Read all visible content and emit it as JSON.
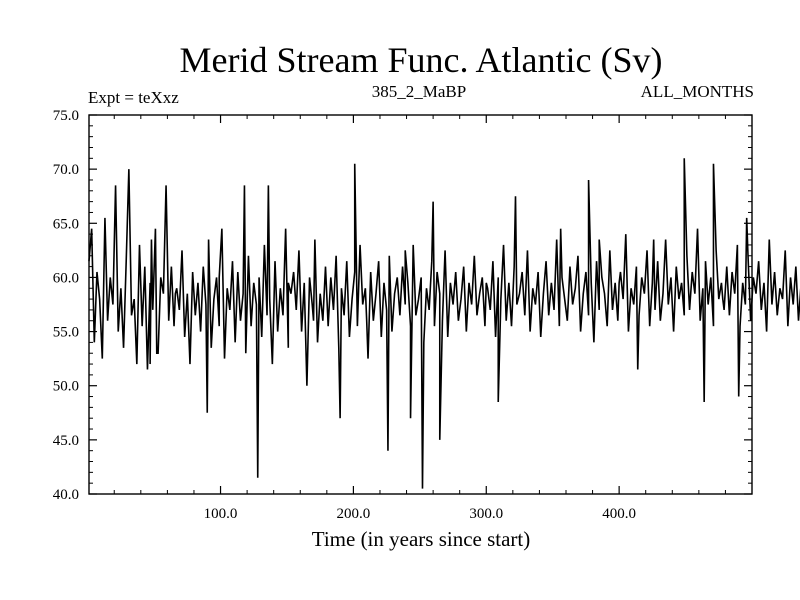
{
  "chart_data": {
    "type": "line",
    "title": "Merid Stream Func. Atlantic (Sv)",
    "subtitle_left": "Expt = teXxz",
    "subtitle_center": "385_2_MaBP",
    "subtitle_right": "ALL_MONTHS",
    "xlabel": "Time (in years since start)",
    "ylabel": "",
    "xlim": [
      1,
      500
    ],
    "ylim": [
      40,
      75
    ],
    "x_ticks": [
      {
        "value": 100,
        "label": "100.0"
      },
      {
        "value": 200,
        "label": "200.0"
      },
      {
        "value": 300,
        "label": "300.0"
      },
      {
        "value": 400,
        "label": "400.0"
      }
    ],
    "y_ticks": [
      {
        "value": 40,
        "label": "40.0"
      },
      {
        "value": 45,
        "label": "45.0"
      },
      {
        "value": 50,
        "label": "50.0"
      },
      {
        "value": 55,
        "label": "55.0"
      },
      {
        "value": 60,
        "label": "60.0"
      },
      {
        "value": 65,
        "label": "65.0"
      },
      {
        "value": 70,
        "label": "70.0"
      },
      {
        "value": 75,
        "label": "75.0"
      }
    ],
    "series": [
      {
        "name": "Atlantic MOC",
        "color": "#000000",
        "x_start": 1,
        "x_step": 2,
        "values": [
          61.5,
          64.5,
          54.0,
          60.5,
          58.0,
          52.5,
          65.5,
          56.0,
          60.0,
          57.5,
          68.5,
          55.0,
          59.0,
          53.5,
          61.5,
          70.0,
          56.5,
          58.0,
          52.0,
          63.0,
          55.5,
          61.0,
          51.5,
          59.5,
          57.0,
          64.5,
          53.0,
          60.0,
          58.5,
          68.5,
          56.0,
          61.0,
          55.5,
          59.0,
          57.0,
          62.5,
          54.5,
          58.5,
          52.0,
          60.5,
          56.5,
          59.5,
          55.0,
          61.0,
          57.5,
          63.5,
          53.5,
          58.0,
          60.0,
          55.5,
          64.5,
          52.5,
          59.0,
          57.0,
          61.5,
          54.0,
          60.5,
          56.0,
          58.5,
          53.0,
          62.0,
          55.5,
          59.5,
          57.5,
          60.0,
          54.5,
          63.0,
          56.5,
          58.0,
          52.0,
          61.5,
          55.0,
          59.0,
          56.5,
          64.5,
          53.5,
          58.5,
          60.5,
          57.0,
          62.5,
          55.0,
          59.5,
          50.0,
          60.0,
          57.5,
          63.5,
          54.0,
          58.5,
          56.0,
          61.0,
          55.5,
          60.0,
          57.0,
          62.0,
          53.5,
          59.0,
          56.5,
          61.5,
          54.5,
          58.0,
          60.5,
          55.5,
          63.0,
          57.5,
          59.0,
          52.5,
          60.5,
          56.0,
          58.5,
          61.5,
          54.5,
          59.5,
          57.0,
          62.0,
          55.0,
          58.5,
          60.0,
          56.5,
          61.0,
          57.5,
          59.5,
          55.5,
          63.0,
          56.5,
          58.0,
          60.0,
          54.0,
          59.0,
          57.0,
          61.5,
          55.5,
          60.5,
          58.5,
          56.0,
          62.5,
          54.5,
          59.5,
          57.5,
          60.5,
          56.0,
          58.0,
          61.0,
          55.0,
          59.5,
          57.5,
          62.0,
          56.5,
          58.5,
          60.0,
          55.5,
          59.0,
          57.0,
          61.5,
          54.5,
          60.0,
          58.0,
          63.0,
          56.0,
          59.5,
          55.5,
          61.0,
          57.5,
          58.5,
          60.5,
          56.5,
          62.5,
          55.0,
          59.0,
          57.5,
          60.5,
          54.5,
          58.5,
          61.5,
          56.5,
          59.5,
          57.0,
          63.5,
          55.5,
          60.0,
          58.0,
          56.0,
          61.0,
          57.5,
          59.0,
          62.0,
          55.0,
          58.5,
          60.5,
          56.5,
          59.5,
          54.0,
          61.5,
          57.0,
          60.0,
          58.5,
          55.5,
          62.5,
          57.0,
          59.5,
          56.0,
          60.5,
          58.0,
          64.0,
          55.0,
          59.0,
          57.5,
          61.0,
          56.5,
          60.0,
          58.5,
          62.5,
          55.5,
          59.5,
          57.0,
          61.5,
          56.0,
          58.5,
          63.5,
          57.5,
          60.0,
          55.0,
          61.0,
          58.0,
          59.5,
          56.5,
          62.0,
          57.0,
          60.5,
          58.5,
          64.5,
          56.0,
          59.0,
          61.5,
          57.5,
          60.0,
          55.5,
          62.5,
          58.0,
          59.5,
          57.0,
          61.0,
          56.5,
          60.5,
          58.5,
          63.0,
          55.5,
          59.5,
          57.5,
          62.0,
          56.0,
          60.0,
          58.5,
          61.5,
          57.0,
          59.5,
          55.0,
          63.5,
          57.5,
          60.5,
          56.5,
          59.0,
          58.0,
          62.5,
          55.5,
          60.0,
          57.5,
          61.0,
          56.0,
          59.5,
          58.5,
          64.0,
          56.5,
          60.5,
          57.0,
          62.0,
          55.5,
          59.0,
          58.0,
          61.5,
          56.0,
          60.0,
          57.5,
          63.0,
          55.0,
          59.5,
          58.5,
          61.0,
          56.5,
          60.5,
          57.0,
          62.5,
          55.5,
          59.0,
          58.0,
          61.5,
          56.0,
          60.0,
          57.5,
          59.5,
          55.0,
          62.0,
          57.0,
          60.5,
          58.5,
          56.5,
          63.5,
          57.5,
          59.5,
          55.5,
          61.0,
          58.0,
          60.0,
          56.0,
          62.5,
          57.0,
          59.0,
          58.5,
          61.5,
          55.5,
          60.5,
          57.5,
          64.5,
          56.0,
          59.5,
          58.0,
          62.0,
          55.0,
          60.0,
          57.0,
          61.0,
          56.5,
          59.5,
          58.5,
          63.0,
          57.5,
          60.5,
          55.5,
          61.5,
          58.0,
          59.0,
          56.0,
          62.5,
          57.5,
          60.0,
          58.5,
          55.5,
          61.0,
          57.0,
          59.5,
          56.5,
          63.5,
          58.0,
          60.5,
          55.0,
          62.0,
          57.5,
          59.0,
          58.5,
          61.5,
          56.0
        ],
        "annotations_note": "irregular extreme excursions",
        "extrema": [
          {
            "x": 47,
            "y": 52.0
          },
          {
            "x": 48,
            "y": 63.5
          },
          {
            "x": 52,
            "y": 53.0
          },
          {
            "x": 66,
            "y": 58.5
          },
          {
            "x": 90,
            "y": 47.5
          },
          {
            "x": 99,
            "y": 60.0
          },
          {
            "x": 118,
            "y": 68.5
          },
          {
            "x": 128,
            "y": 41.5
          },
          {
            "x": 136,
            "y": 68.5
          },
          {
            "x": 151,
            "y": 59.5
          },
          {
            "x": 170,
            "y": 56.0
          },
          {
            "x": 190,
            "y": 47.0
          },
          {
            "x": 201,
            "y": 70.5
          },
          {
            "x": 210,
            "y": 56.0
          },
          {
            "x": 226,
            "y": 44.0
          },
          {
            "x": 239,
            "y": 62.5
          },
          {
            "x": 243,
            "y": 47.0
          },
          {
            "x": 252,
            "y": 40.5
          },
          {
            "x": 260,
            "y": 67.0
          },
          {
            "x": 265,
            "y": 45.0
          },
          {
            "x": 300,
            "y": 59.5
          },
          {
            "x": 309,
            "y": 48.5
          },
          {
            "x": 322,
            "y": 67.5
          },
          {
            "x": 356,
            "y": 64.5
          },
          {
            "x": 377,
            "y": 69.0
          },
          {
            "x": 385,
            "y": 63.5
          },
          {
            "x": 400,
            "y": 59.5
          },
          {
            "x": 414,
            "y": 51.5
          },
          {
            "x": 426,
            "y": 63.5
          },
          {
            "x": 449,
            "y": 71.0
          },
          {
            "x": 464,
            "y": 48.5
          },
          {
            "x": 471,
            "y": 70.5
          },
          {
            "x": 478,
            "y": 58.0
          },
          {
            "x": 490,
            "y": 49.0
          },
          {
            "x": 496,
            "y": 65.5
          }
        ]
      }
    ]
  }
}
